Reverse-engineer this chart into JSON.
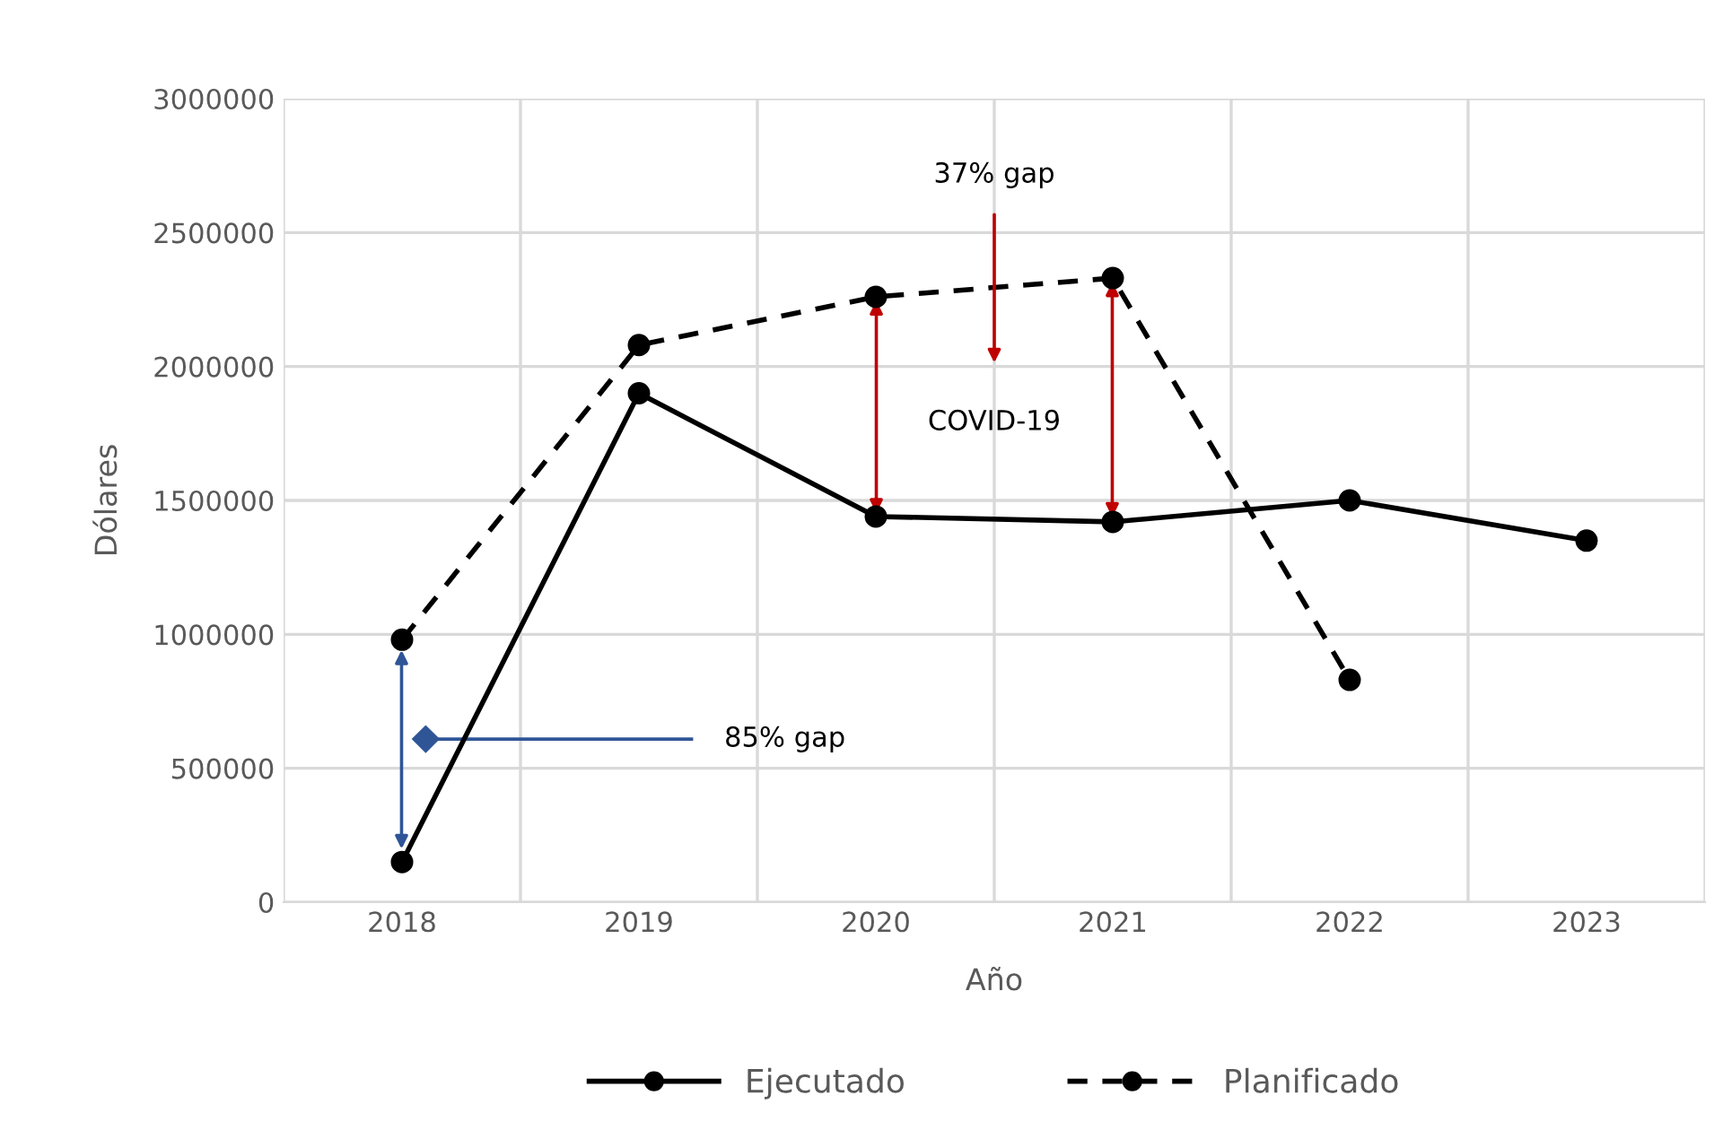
{
  "chart_data": {
    "type": "line",
    "xlabel": "Año",
    "ylabel": "Dólares",
    "categories": [
      "2018",
      "2019",
      "2020",
      "2021",
      "2022",
      "2023"
    ],
    "series": [
      {
        "name": "Ejecutado",
        "color": "#000000",
        "line_style": "solid",
        "values": [
          150000,
          1900000,
          1440000,
          1420000,
          1500000,
          1350000
        ]
      },
      {
        "name": "Planificado",
        "color": "#000000",
        "line_style": "dashed",
        "values": [
          980000,
          2080000,
          2260000,
          2330000,
          830000,
          null
        ]
      }
    ],
    "ylim": [
      0,
      3000000
    ],
    "yticks": [
      0,
      500000,
      1000000,
      1500000,
      2000000,
      2500000,
      3000000
    ],
    "grid": true,
    "legend": "bottom",
    "marker": "circle",
    "annotations": [
      "37% gap",
      "COVID-19",
      "85% gap"
    ]
  }
}
